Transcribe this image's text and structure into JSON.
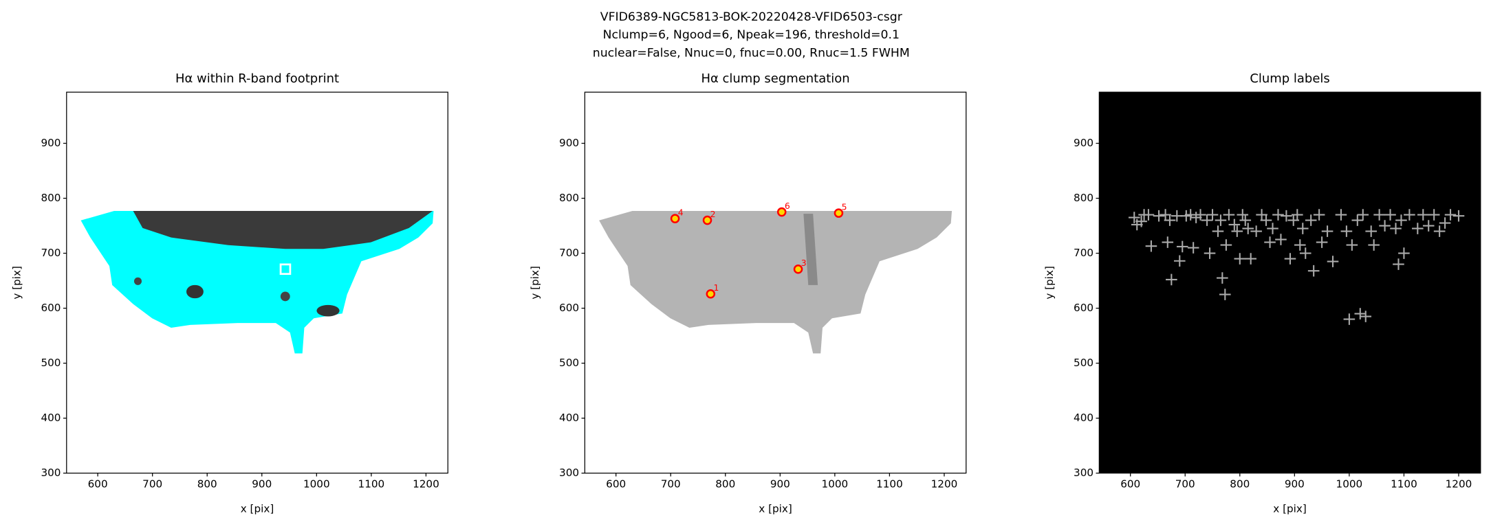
{
  "suptitle": [
    "VFID6389-NGC5813-BOK-20220428-VFID6503-csgr",
    "Nclump=6, Ngood=6, Npeak=196, threshold=0.1",
    "nuclear=False, Nnuc=0, fnuc=0.00, Rnuc=1.5 FWHM"
  ],
  "chart_data": [
    {
      "type": "image",
      "title": "Hα within R-band footprint",
      "xlabel": "x [pix]",
      "ylabel": "y [pix]",
      "xlim": [
        543,
        1240
      ],
      "ylim": [
        300,
        993
      ],
      "xticks": [
        600,
        700,
        800,
        900,
        1000,
        1100,
        1200
      ],
      "yticks": [
        300,
        400,
        500,
        600,
        700,
        800,
        900
      ],
      "x": [
        943
      ],
      "values": [
        671
      ],
      "color": "#00ffff"
    },
    {
      "type": "clumps",
      "title": "Hα clump segmentation",
      "xlabel": "x [pix]",
      "ylabel": "y [pix]",
      "xlim": [
        543,
        1240
      ],
      "ylim": [
        300,
        993
      ],
      "xticks": [
        600,
        700,
        800,
        900,
        1000,
        1100,
        1200
      ],
      "yticks": [
        300,
        400,
        500,
        600,
        700,
        800,
        900
      ],
      "x": [
        773,
        767,
        933,
        708,
        1007,
        903
      ],
      "values": [
        626,
        760,
        671,
        763,
        773,
        775
      ],
      "labels": [
        "1",
        "2",
        "3",
        "4",
        "5",
        "6"
      ],
      "color": "#ff0000"
    },
    {
      "type": "peaks",
      "title": "Clump labels",
      "xlabel": "x [pix]",
      "ylabel": "y [pix]",
      "xlim": [
        543,
        1240
      ],
      "ylim": [
        300,
        993
      ],
      "xticks": [
        600,
        700,
        800,
        900,
        1000,
        1100,
        1200
      ],
      "yticks": [
        300,
        400,
        500,
        600,
        700,
        800,
        900
      ],
      "x": [
        607,
        612,
        620,
        625,
        633,
        638,
        652,
        664,
        668,
        672,
        675,
        685,
        690,
        695,
        702,
        710,
        715,
        720,
        728,
        740,
        745,
        750,
        760,
        765,
        768,
        773,
        775,
        780,
        790,
        795,
        800,
        805,
        810,
        815,
        820,
        830,
        840,
        848,
        855,
        860,
        870,
        875,
        885,
        892,
        898,
        905,
        910,
        915,
        920,
        930,
        935,
        945,
        950,
        960,
        970,
        985,
        995,
        1000,
        1005,
        1015,
        1020,
        1025,
        1030,
        1040,
        1045,
        1055,
        1065,
        1075,
        1085,
        1090,
        1095,
        1100,
        1110,
        1125,
        1135,
        1145,
        1155,
        1165,
        1175,
        1185,
        1200
      ],
      "values": [
        765,
        752,
        758,
        770,
        770,
        713,
        768,
        770,
        720,
        760,
        652,
        768,
        686,
        712,
        768,
        770,
        710,
        765,
        770,
        760,
        700,
        770,
        740,
        760,
        655,
        625,
        715,
        770,
        752,
        740,
        690,
        770,
        760,
        745,
        690,
        740,
        770,
        760,
        720,
        745,
        770,
        725,
        768,
        690,
        760,
        770,
        715,
        745,
        700,
        760,
        668,
        770,
        720,
        740,
        685,
        770,
        740,
        580,
        715,
        760,
        590,
        770,
        585,
        740,
        715,
        770,
        750,
        770,
        745,
        680,
        760,
        700,
        770,
        745,
        770,
        750,
        770,
        740,
        755,
        770,
        768
      ],
      "color": "#aaaaaa"
    }
  ]
}
